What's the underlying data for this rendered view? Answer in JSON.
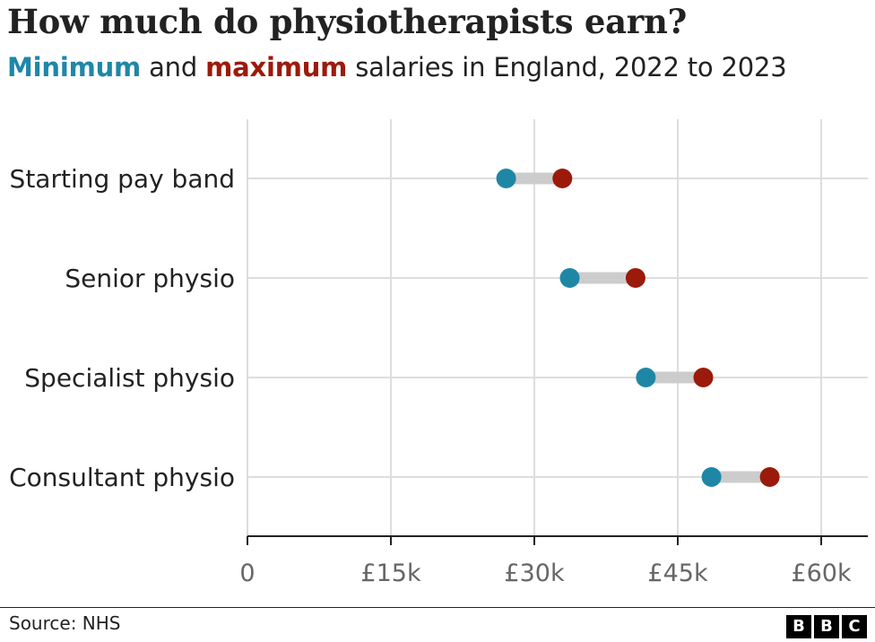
{
  "title": "How much do physiotherapists earn?",
  "subtitle": {
    "min_word": "Minimum",
    "and": " and ",
    "max_word": "maximum",
    "rest": " salaries in England, 2022 to 2023"
  },
  "colors": {
    "minimum": "#1f87a6",
    "maximum": "#9c1a0b",
    "connector": "#cccccc",
    "grid": "#dddddd",
    "axis": "#222222"
  },
  "chart_data": {
    "type": "dumbbell",
    "categories": [
      "Starting pay band",
      "Senior physio",
      "Specialist physio",
      "Consultant physio"
    ],
    "series": [
      {
        "name": "Minimum",
        "values": [
          27055,
          33706,
          41659,
          48526
        ]
      },
      {
        "name": "Maximum",
        "values": [
          32934,
          40588,
          47672,
          54619
        ]
      }
    ],
    "xlim": [
      0,
      65000
    ],
    "xticks": [
      0,
      15000,
      30000,
      45000,
      60000
    ],
    "xtick_labels": [
      "0",
      "£15k",
      "£30k",
      "£45k",
      "£60k"
    ],
    "grid": true
  },
  "footer": {
    "source": "Source: NHS",
    "logo": [
      "B",
      "B",
      "C"
    ]
  }
}
